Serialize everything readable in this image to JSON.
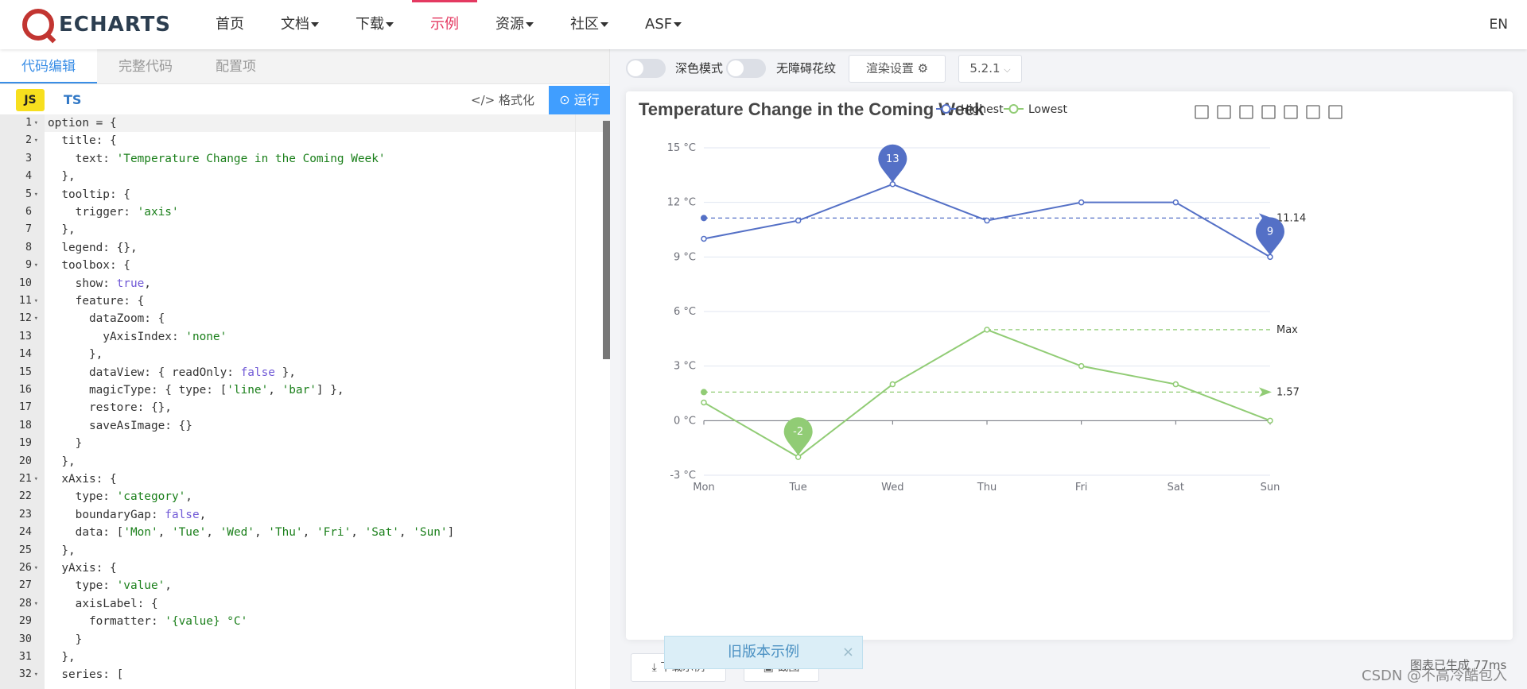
{
  "nav": {
    "logo": "ECHARTS",
    "items": [
      {
        "label": "首页",
        "dropdown": false,
        "active": false
      },
      {
        "label": "文档",
        "dropdown": true,
        "active": false
      },
      {
        "label": "下载",
        "dropdown": true,
        "active": false
      },
      {
        "label": "示例",
        "dropdown": false,
        "active": true
      },
      {
        "label": "资源",
        "dropdown": true,
        "active": false
      },
      {
        "label": "社区",
        "dropdown": true,
        "active": false
      },
      {
        "label": "ASF",
        "dropdown": true,
        "active": false
      }
    ],
    "lang": "EN"
  },
  "editor": {
    "tabs": [
      "代码编辑",
      "完整代码",
      "配置项"
    ],
    "active_tab": 0,
    "js_label": "JS",
    "ts_label": "TS",
    "format_label": "格式化",
    "run_label": "运行",
    "lines": [
      {
        "n": "1",
        "f": true,
        "t": [
          [
            "option = {",
            ""
          ]
        ]
      },
      {
        "n": "2",
        "f": true,
        "t": [
          [
            "  title: {",
            ""
          ]
        ]
      },
      {
        "n": "3",
        "f": false,
        "t": [
          [
            "    text: ",
            ""
          ],
          [
            "'Temperature Change in the Coming Week'",
            "s"
          ]
        ]
      },
      {
        "n": "4",
        "f": false,
        "t": [
          [
            "  },",
            ""
          ]
        ]
      },
      {
        "n": "5",
        "f": true,
        "t": [
          [
            "  tooltip: {",
            ""
          ]
        ]
      },
      {
        "n": "6",
        "f": false,
        "t": [
          [
            "    trigger: ",
            ""
          ],
          [
            "'axis'",
            "s"
          ]
        ]
      },
      {
        "n": "7",
        "f": false,
        "t": [
          [
            "  },",
            ""
          ]
        ]
      },
      {
        "n": "8",
        "f": false,
        "t": [
          [
            "  legend: {},",
            ""
          ]
        ]
      },
      {
        "n": "9",
        "f": true,
        "t": [
          [
            "  toolbox: {",
            ""
          ]
        ]
      },
      {
        "n": "10",
        "f": false,
        "t": [
          [
            "    show: ",
            ""
          ],
          [
            "true",
            "k"
          ],
          [
            ",",
            ""
          ]
        ]
      },
      {
        "n": "11",
        "f": true,
        "t": [
          [
            "    feature: {",
            ""
          ]
        ]
      },
      {
        "n": "12",
        "f": true,
        "t": [
          [
            "      dataZoom: {",
            ""
          ]
        ]
      },
      {
        "n": "13",
        "f": false,
        "t": [
          [
            "        yAxisIndex: ",
            ""
          ],
          [
            "'none'",
            "s"
          ]
        ]
      },
      {
        "n": "14",
        "f": false,
        "t": [
          [
            "      },",
            ""
          ]
        ]
      },
      {
        "n": "15",
        "f": false,
        "t": [
          [
            "      dataView: { readOnly: ",
            ""
          ],
          [
            "false",
            "k"
          ],
          [
            " },",
            ""
          ]
        ]
      },
      {
        "n": "16",
        "f": false,
        "t": [
          [
            "      magicType: { type: [",
            ""
          ],
          [
            "'line'",
            "s"
          ],
          [
            ", ",
            ""
          ],
          [
            "'bar'",
            "s"
          ],
          [
            "] },",
            ""
          ]
        ]
      },
      {
        "n": "17",
        "f": false,
        "t": [
          [
            "      restore: {},",
            ""
          ]
        ]
      },
      {
        "n": "18",
        "f": false,
        "t": [
          [
            "      saveAsImage: {}",
            ""
          ]
        ]
      },
      {
        "n": "19",
        "f": false,
        "t": [
          [
            "    }",
            ""
          ]
        ]
      },
      {
        "n": "20",
        "f": false,
        "t": [
          [
            "  },",
            ""
          ]
        ]
      },
      {
        "n": "21",
        "f": true,
        "t": [
          [
            "  xAxis: {",
            ""
          ]
        ]
      },
      {
        "n": "22",
        "f": false,
        "t": [
          [
            "    type: ",
            ""
          ],
          [
            "'category'",
            "s"
          ],
          [
            ",",
            ""
          ]
        ]
      },
      {
        "n": "23",
        "f": false,
        "t": [
          [
            "    boundaryGap: ",
            ""
          ],
          [
            "false",
            "k"
          ],
          [
            ",",
            ""
          ]
        ]
      },
      {
        "n": "24",
        "f": false,
        "t": [
          [
            "    data: [",
            ""
          ],
          [
            "'Mon'",
            "s"
          ],
          [
            ", ",
            ""
          ],
          [
            "'Tue'",
            "s"
          ],
          [
            ", ",
            ""
          ],
          [
            "'Wed'",
            "s"
          ],
          [
            ", ",
            ""
          ],
          [
            "'Thu'",
            "s"
          ],
          [
            ", ",
            ""
          ],
          [
            "'Fri'",
            "s"
          ],
          [
            ", ",
            ""
          ],
          [
            "'Sat'",
            "s"
          ],
          [
            ", ",
            ""
          ],
          [
            "'Sun'",
            "s"
          ],
          [
            "]",
            ""
          ]
        ]
      },
      {
        "n": "25",
        "f": false,
        "t": [
          [
            "  },",
            ""
          ]
        ]
      },
      {
        "n": "26",
        "f": true,
        "t": [
          [
            "  yAxis: {",
            ""
          ]
        ]
      },
      {
        "n": "27",
        "f": false,
        "t": [
          [
            "    type: ",
            ""
          ],
          [
            "'value'",
            "s"
          ],
          [
            ",",
            ""
          ]
        ]
      },
      {
        "n": "28",
        "f": true,
        "t": [
          [
            "    axisLabel: {",
            ""
          ]
        ]
      },
      {
        "n": "29",
        "f": false,
        "t": [
          [
            "      formatter: ",
            ""
          ],
          [
            "'{value} °C'",
            "s"
          ]
        ]
      },
      {
        "n": "30",
        "f": false,
        "t": [
          [
            "    }",
            ""
          ]
        ]
      },
      {
        "n": "31",
        "f": false,
        "t": [
          [
            "  },",
            ""
          ]
        ]
      },
      {
        "n": "32",
        "f": true,
        "t": [
          [
            "  series: [",
            ""
          ]
        ]
      }
    ]
  },
  "preview": {
    "dark_mode_label": "深色模式",
    "a11y_label": "无障碍花纹",
    "render_settings_label": "渲染设置",
    "version": "5.2.1",
    "download_label": "下载示例",
    "screenshot_label": "截图",
    "notice": "旧版本示例",
    "status": "图表已生成 77ms",
    "watermark": "CSDN @不高冷酷包入"
  },
  "chart_data": {
    "type": "line",
    "title": "Temperature Change in the Coming Week",
    "categories": [
      "Mon",
      "Tue",
      "Wed",
      "Thu",
      "Fri",
      "Sat",
      "Sun"
    ],
    "series": [
      {
        "name": "Highest",
        "values": [
          10,
          11,
          13,
          11,
          12,
          12,
          9
        ],
        "color": "#5470c6",
        "markPoints": [
          {
            "label": "13",
            "index": 2,
            "value": 13
          },
          {
            "label": "9",
            "index": 6,
            "value": 9
          }
        ],
        "markLine": {
          "label": "11.14",
          "value": 11.14
        }
      },
      {
        "name": "Lowest",
        "values": [
          1,
          -2,
          2,
          5,
          3,
          2,
          0
        ],
        "color": "#91cc75",
        "markPoints": [
          {
            "label": "-2",
            "index": 1,
            "value": -2
          }
        ],
        "markLine": {
          "label": "1.57",
          "value": 1.57
        },
        "maxLine": {
          "label": "Max",
          "value": 5,
          "fromIndex": 3
        }
      }
    ],
    "yticks": [
      "15 °C",
      "12 °C",
      "9 °C",
      "6 °C",
      "3 °C",
      "0 °C",
      "-3 °C"
    ],
    "yvalues": [
      15,
      12,
      9,
      6,
      3,
      0,
      -3
    ],
    "ylim": [
      -3,
      15
    ],
    "legend_position": "top-center",
    "grid": true
  }
}
